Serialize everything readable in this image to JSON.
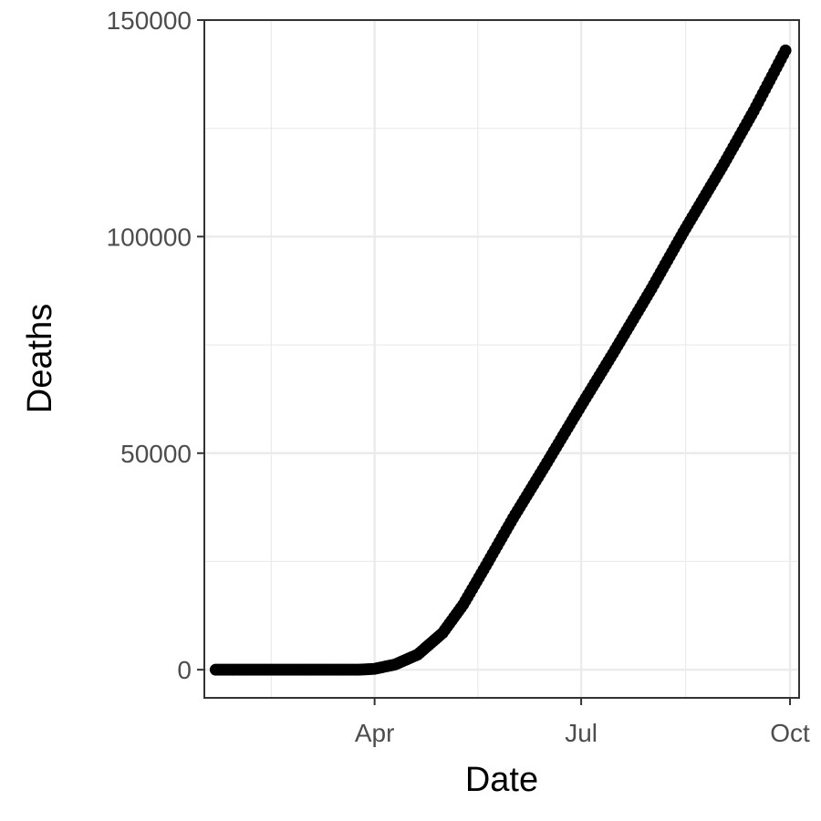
{
  "chart_data": {
    "type": "scatter",
    "xlabel": "Date",
    "ylabel": "Deaths",
    "x_tick_labels": [
      "Apr",
      "Jul",
      "Oct"
    ],
    "x_ticks": [
      "2020-04-01",
      "2020-07-01",
      "2020-10-01"
    ],
    "xlim": [
      "2020-01-17",
      "2020-10-05"
    ],
    "y_tick_labels": [
      "0",
      "50000",
      "100000",
      "150000"
    ],
    "y_ticks": [
      0,
      50000,
      100000,
      150000
    ],
    "ylim": [
      -6500,
      150000
    ],
    "grid": true,
    "colors": {
      "points": "#000000",
      "grid": "#ebebeb",
      "panel_border": "#333333"
    },
    "series": [
      {
        "x": [
          "2020-01-22",
          "2020-02-01",
          "2020-02-15",
          "2020-03-01",
          "2020-03-15",
          "2020-03-25",
          "2020-04-01",
          "2020-04-10",
          "2020-04-20",
          "2020-05-01",
          "2020-05-10",
          "2020-05-20",
          "2020-06-01",
          "2020-06-15",
          "2020-07-01",
          "2020-07-15",
          "2020-08-01",
          "2020-08-15",
          "2020-09-01",
          "2020-09-15",
          "2020-09-29"
        ],
        "y": [
          0,
          0,
          0,
          0,
          0,
          0,
          200,
          1200,
          3500,
          8500,
          15000,
          24000,
          35000,
          47000,
          61000,
          73000,
          88000,
          101000,
          116000,
          129000,
          143000
        ]
      }
    ]
  }
}
